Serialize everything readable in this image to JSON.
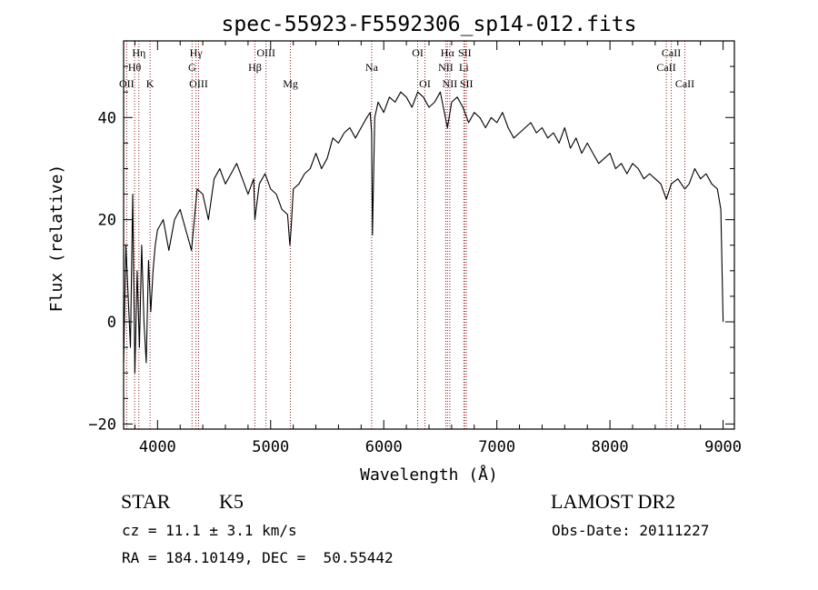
{
  "chart_data": {
    "type": "line",
    "title": "spec-55923-F5592306_sp14-012.fits",
    "xlabel": "Wavelength (Å)",
    "ylabel": "Flux (relative)",
    "xlim": [
      3700,
      9100
    ],
    "ylim": [
      -21,
      55
    ],
    "x_ticks": [
      4000,
      5000,
      6000,
      7000,
      8000,
      9000
    ],
    "x_tick_labels": [
      "4000",
      "5000",
      "6000",
      "7000",
      "8000",
      "9000"
    ],
    "y_ticks": [
      -20,
      0,
      20,
      40
    ],
    "y_tick_labels": [
      "−20",
      "0",
      "20",
      "40"
    ],
    "x_minor_step": 200,
    "y_minor_step": 5,
    "grid": false,
    "line_color": "#000000",
    "marker_color": "#8b1a1a",
    "series": [
      {
        "x": [
          3700,
          3720,
          3740,
          3760,
          3780,
          3800,
          3820,
          3840,
          3860,
          3880,
          3900,
          3920,
          3940,
          3960,
          3980,
          4000,
          4050,
          4100,
          4150,
          4200,
          4250,
          4300,
          4350,
          4400,
          4450,
          4500,
          4550,
          4600,
          4650,
          4700,
          4750,
          4800,
          4850,
          4860,
          4900,
          4950,
          5000,
          5050,
          5100,
          5150,
          5170,
          5180,
          5200,
          5250,
          5300,
          5350,
          5400,
          5450,
          5500,
          5550,
          5600,
          5650,
          5700,
          5750,
          5800,
          5850,
          5880,
          5893,
          5900,
          5920,
          5950,
          6000,
          6050,
          6100,
          6150,
          6200,
          6250,
          6300,
          6350,
          6400,
          6450,
          6500,
          6563,
          6600,
          6650,
          6700,
          6750,
          6800,
          6850,
          6900,
          6950,
          7000,
          7050,
          7100,
          7150,
          7200,
          7250,
          7300,
          7350,
          7400,
          7450,
          7500,
          7550,
          7600,
          7650,
          7700,
          7750,
          7800,
          7850,
          7900,
          7950,
          8000,
          8050,
          8100,
          8150,
          8200,
          8250,
          8300,
          8350,
          8400,
          8450,
          8498,
          8542,
          8600,
          8662,
          8700,
          8750,
          8800,
          8850,
          8900,
          8950,
          8980,
          9000
        ],
        "y": [
          -8,
          15,
          5,
          -5,
          25,
          -10,
          10,
          -5,
          15,
          0,
          -8,
          12,
          2,
          10,
          15,
          18,
          20,
          14,
          20,
          22,
          18,
          14,
          26,
          25,
          20,
          28,
          30,
          27,
          29,
          31,
          28,
          25,
          28,
          20,
          27,
          29,
          26,
          25,
          22,
          21,
          15,
          18,
          26,
          27,
          29,
          30,
          33,
          30,
          32,
          36,
          35,
          37,
          38,
          36,
          38,
          40,
          41,
          37,
          17,
          40,
          43,
          41,
          44,
          43,
          45,
          44,
          42,
          45,
          44,
          42,
          43,
          45,
          38,
          43,
          44,
          42,
          39,
          41,
          40,
          38,
          40,
          39,
          41,
          38,
          36,
          37,
          38,
          39,
          37,
          38,
          36,
          37,
          35,
          38,
          34,
          36,
          33,
          35,
          33,
          31,
          32,
          33,
          30,
          31,
          29,
          31,
          30,
          28,
          29,
          28,
          27,
          24,
          27,
          28,
          26,
          27,
          30,
          28,
          29,
          27,
          26,
          22,
          0
        ]
      }
    ],
    "line_markers": [
      {
        "label": "Hη",
        "row": 1,
        "x": 3835
      },
      {
        "label": "Hθ",
        "row": 2,
        "x": 3797
      },
      {
        "label": "OII",
        "row": 3,
        "x": 3727
      },
      {
        "label": "K",
        "row": 3,
        "x": 3934
      },
      {
        "label": "Hγ",
        "row": 1,
        "x": 4340
      },
      {
        "label": "G",
        "row": 2,
        "x": 4305
      },
      {
        "label": "OIII",
        "row": 3,
        "x": 4363
      },
      {
        "label": "OIII",
        "row": 1,
        "x": 4959
      },
      {
        "label": "Hβ",
        "row": 2,
        "x": 4861
      },
      {
        "label": "Mg",
        "row": 3,
        "x": 5175
      },
      {
        "label": "Na",
        "row": 2,
        "x": 5893
      },
      {
        "label": "OI",
        "row": 1,
        "x": 6300
      },
      {
        "label": "OI",
        "row": 3,
        "x": 6364
      },
      {
        "label": "Hα",
        "row": 1,
        "x": 6563
      },
      {
        "label": "SII",
        "row": 1,
        "x": 6716
      },
      {
        "label": "NII",
        "row": 2,
        "x": 6548
      },
      {
        "label": "Li",
        "row": 2,
        "x": 6708
      },
      {
        "label": "NII",
        "row": 3,
        "x": 6584
      },
      {
        "label": "SII",
        "row": 3,
        "x": 6731
      },
      {
        "label": "CaII",
        "row": 1,
        "x": 8542
      },
      {
        "label": "CaII",
        "row": 2,
        "x": 8498
      },
      {
        "label": "CaII",
        "row": 3,
        "x": 8662
      }
    ]
  },
  "info": {
    "class": "STAR",
    "subclass": "K5",
    "survey": "LAMOST DR2",
    "cz": "cz = 11.1 ± 3.1 km/s",
    "obs_date": "Obs-Date: 20111227",
    "coords": "RA = 184.10149, DEC =  50.55442"
  }
}
